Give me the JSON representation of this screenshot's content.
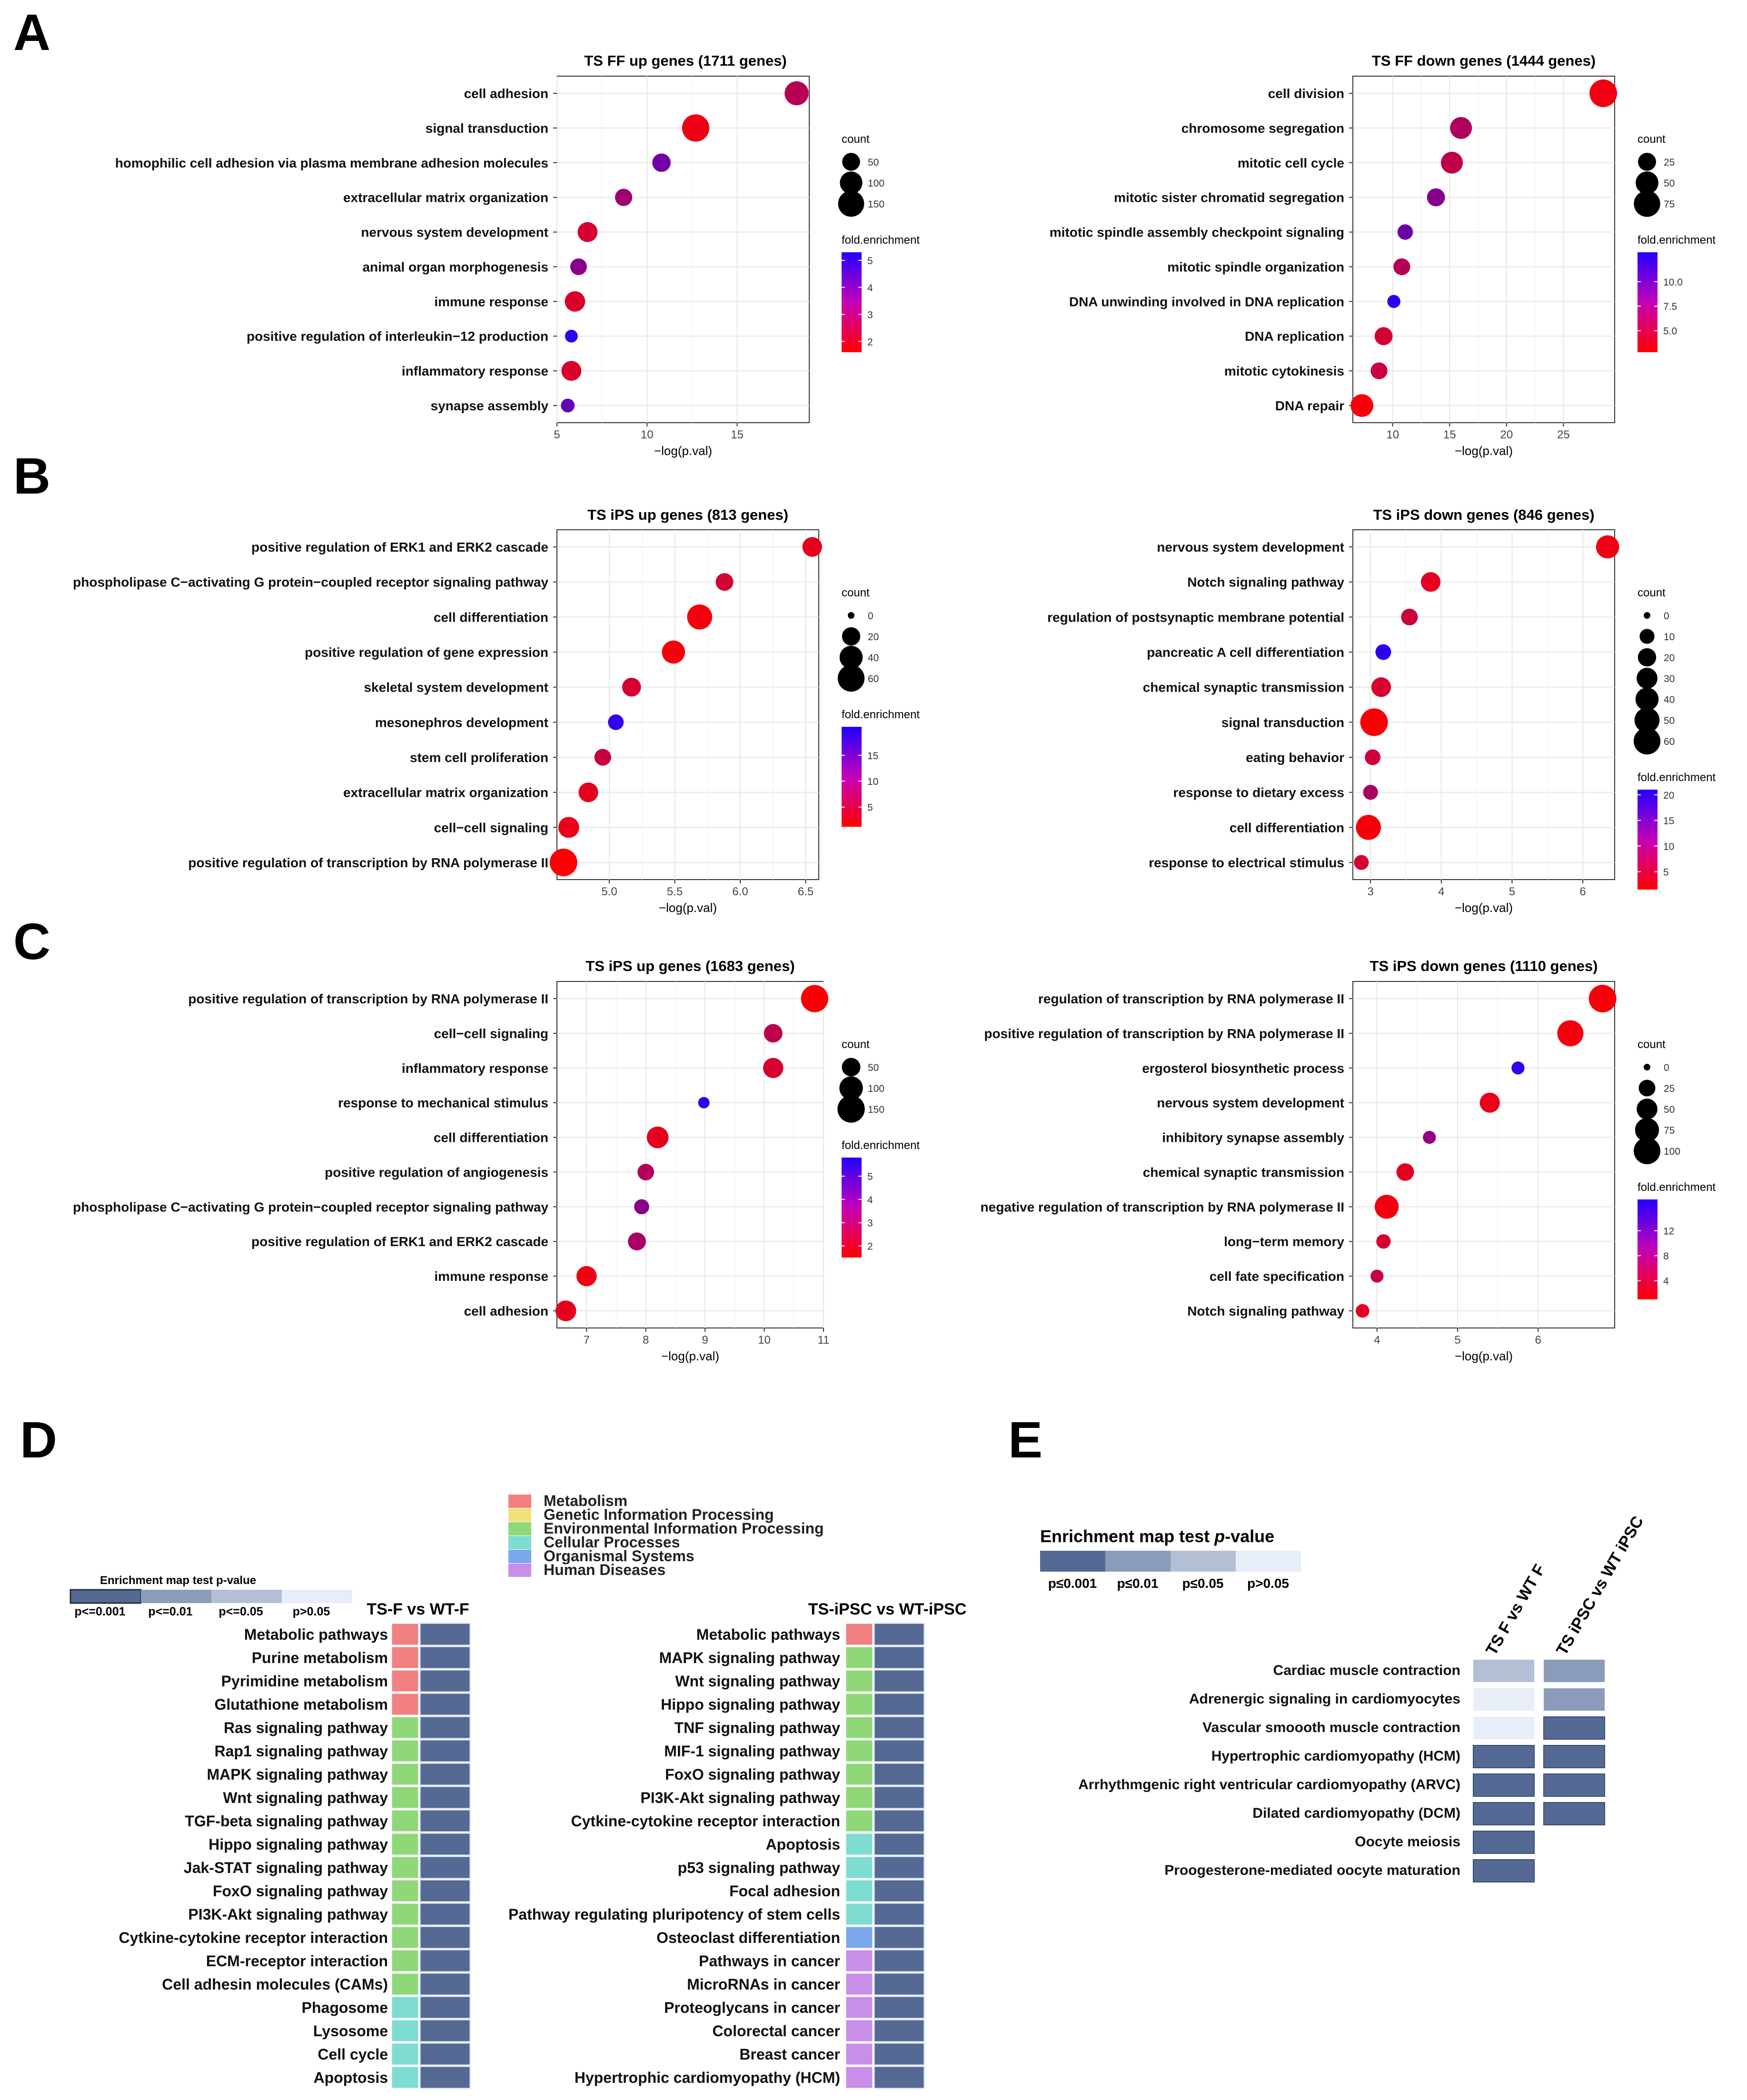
{
  "panels": {
    "A": "A",
    "B": "B",
    "C": "C",
    "D": "D",
    "E": "E"
  },
  "colors": {
    "enrich_high": "#2200ff",
    "enrich_low": "#ff0000",
    "pv001": "#546a94",
    "pv01": "#8a9cb9",
    "pv05": "#b3bfd5",
    "pvns": "#e8eef8"
  },
  "chart_data": [
    {
      "id": "A1",
      "type": "scatter",
      "title": "TS FF up genes (1711 genes)",
      "xlabel": "−log(p.val)",
      "xlim": [
        5,
        19
      ],
      "xticks": [
        5,
        10,
        15
      ],
      "xticklabels": [
        "5",
        "10",
        "15"
      ],
      "grid": true,
      "categories": [
        "cell adhesion",
        "signal transduction",
        "homophilic cell adhesion via plasma membrane adhesion molecules",
        "extracellular matrix organization",
        "nervous system development",
        "animal organ morphogenesis",
        "immune response",
        "positive regulation of interleukin−12 production",
        "inflammatory response",
        "synapse assembly"
      ],
      "x": [
        18.3,
        12.7,
        10.8,
        8.7,
        6.7,
        6.2,
        6.0,
        5.8,
        5.8,
        5.6
      ],
      "count": [
        120,
        170,
        55,
        45,
        70,
        40,
        75,
        15,
        70,
        20
      ],
      "enrichment": [
        2.8,
        1.9,
        4.0,
        3.2,
        2.3,
        3.6,
        2.2,
        5.1,
        2.2,
        4.2
      ],
      "count_legend": {
        "title": "count",
        "breaks": [
          50,
          100,
          150
        ],
        "labels": [
          "50",
          "100",
          "150"
        ],
        "max": 175
      },
      "enrich_legend": {
        "title": "fold.enrichment",
        "range": [
          1.6,
          5.3
        ],
        "ticks": [
          5,
          4,
          3,
          2
        ],
        "labels": [
          "5",
          "4",
          "3",
          "2"
        ]
      }
    },
    {
      "id": "A2",
      "type": "scatter",
      "title": "TS FF down genes (1444 genes)",
      "xlabel": "−log(p.val)",
      "xlim": [
        6.5,
        29.5
      ],
      "xticks": [
        10,
        15,
        20,
        25
      ],
      "xticklabels": [
        "10",
        "15",
        "20",
        "25"
      ],
      "grid": true,
      "categories": [
        "cell division",
        "chromosome segregation",
        "mitotic cell cycle",
        "mitotic sister chromatid segregation",
        "mitotic spindle assembly checkpoint signaling",
        "mitotic spindle organization",
        "DNA unwinding involved in DNA replication",
        "DNA replication",
        "mitotic cytokinesis",
        "DNA repair"
      ],
      "x": [
        28.5,
        16.0,
        15.2,
        13.8,
        11.1,
        10.8,
        10.1,
        9.2,
        8.8,
        7.3
      ],
      "count": [
        85,
        45,
        45,
        25,
        15,
        20,
        8,
        25,
        20,
        50
      ],
      "enrichment": [
        3.5,
        6.5,
        5.8,
        8.5,
        9.5,
        6.2,
        12.5,
        4.8,
        5.2,
        3.2
      ],
      "count_legend": {
        "title": "count",
        "breaks": [
          25,
          50,
          75
        ],
        "labels": [
          "25",
          "50",
          "75"
        ],
        "max": 85
      },
      "enrich_legend": {
        "title": "fold.enrichment",
        "range": [
          2.8,
          13.0
        ],
        "ticks": [
          10,
          7.5,
          5
        ],
        "labels": [
          "10.0",
          "7.5",
          "5.0"
        ]
      }
    },
    {
      "id": "B1",
      "type": "scatter",
      "title": "TS iPS up genes (813 genes)",
      "xlabel": "−log(p.val)",
      "xlim": [
        4.6,
        6.6
      ],
      "xticks": [
        5.0,
        5.5,
        6.0,
        6.5
      ],
      "xticklabels": [
        "5.0",
        "5.5",
        "6.0",
        "6.5"
      ],
      "grid": true,
      "categories": [
        "positive regulation of ERK1 and ERK2 cascade",
        "phospholipase C−activating G protein−coupled receptor signaling pathway",
        "cell differentiation",
        "positive regulation of gene expression",
        "skeletal system development",
        "mesonephros development",
        "stem cell proliferation",
        "extracellular matrix organization",
        "cell−cell signaling",
        "positive regulation of transcription by RNA polymerase II"
      ],
      "x": [
        6.55,
        5.88,
        5.69,
        5.49,
        5.17,
        5.05,
        4.95,
        4.84,
        4.69,
        4.65
      ],
      "count": [
        25,
        18,
        50,
        40,
        22,
        12,
        15,
        25,
        30,
        65
      ],
      "enrichment": [
        3.5,
        5.0,
        2.2,
        2.0,
        4.8,
        19.0,
        6.0,
        3.5,
        3.0,
        1.5
      ],
      "count_legend": {
        "title": "count",
        "breaks": [
          0,
          20,
          40,
          60
        ],
        "labels": [
          "0",
          "20",
          "40",
          "60"
        ],
        "max": 65
      },
      "enrich_legend": {
        "title": "fold.enrichment",
        "range": [
          1.2,
          20.5
        ],
        "ticks": [
          15,
          10,
          5
        ],
        "labels": [
          "15",
          "10",
          "5"
        ]
      }
    },
    {
      "id": "B2",
      "type": "scatter",
      "title": "TS  iPS down genes (846 genes)",
      "xlabel": "−log(p.val)",
      "xlim": [
        2.75,
        6.45
      ],
      "xticks": [
        3,
        4,
        5,
        6
      ],
      "xticklabels": [
        "3",
        "4",
        "5",
        "6"
      ],
      "grid": true,
      "categories": [
        "nervous system development",
        "Notch signaling pathway",
        "regulation of postsynaptic membrane potential",
        "pancreatic A cell differentiation",
        "chemical synaptic transmission",
        "signal transduction",
        "eating behavior",
        "response to dietary excess",
        "cell differentiation",
        "response to electrical stimulus"
      ],
      "x": [
        6.35,
        3.85,
        3.55,
        3.18,
        3.15,
        3.05,
        3.03,
        3.0,
        2.97,
        2.87
      ],
      "count": [
        40,
        25,
        15,
        12,
        25,
        65,
        12,
        10,
        50,
        10
      ],
      "enrichment": [
        3.0,
        4.0,
        6.0,
        20.0,
        5.0,
        2.0,
        6.0,
        9.0,
        2.5,
        5.5
      ],
      "count_legend": {
        "title": "count",
        "breaks": [
          0,
          10,
          20,
          30,
          40,
          50,
          60
        ],
        "labels": [
          "0",
          "10",
          "20",
          "30",
          "40",
          "50",
          "60"
        ],
        "max": 65
      },
      "enrich_legend": {
        "title": "fold.enrichment",
        "range": [
          1.5,
          21.0
        ],
        "ticks": [
          20,
          15,
          10,
          5
        ],
        "labels": [
          "20",
          "15",
          "10",
          "5"
        ]
      }
    },
    {
      "id": "C1",
      "type": "scatter",
      "title": "TS iPS up genes (1683 genes)",
      "xlabel": "−log(p.val)",
      "xlim": [
        6.5,
        11.0
      ],
      "xticks": [
        7,
        8,
        9,
        10,
        11
      ],
      "xticklabels": [
        "7",
        "8",
        "9",
        "10",
        "11"
      ],
      "grid": true,
      "categories": [
        "positive regulation of transcription by RNA polymerase II",
        "cell−cell signaling",
        "inflammatory response",
        "response to mechanical stimulus",
        "cell differentiation",
        "positive regulation of angiogenesis",
        "phospholipase C−activating G protein−coupled receptor signaling pathway",
        "positive regulation of ERK1 and ERK2 cascade",
        "immune response",
        "cell adhesion"
      ],
      "x": [
        10.85,
        10.15,
        10.15,
        8.98,
        8.2,
        8.0,
        7.93,
        7.85,
        7.0,
        6.65
      ],
      "count": [
        150,
        50,
        65,
        8,
        80,
        35,
        25,
        45,
        65,
        70
      ],
      "enrichment": [
        1.6,
        2.8,
        2.3,
        5.6,
        2.0,
        3.0,
        3.8,
        3.2,
        1.8,
        2.0
      ],
      "count_legend": {
        "title": "count",
        "breaks": [
          50,
          100,
          150
        ],
        "labels": [
          "50",
          "100",
          "150"
        ],
        "max": 155
      },
      "enrich_legend": {
        "title": "fold.enrichment",
        "range": [
          1.5,
          5.8
        ],
        "ticks": [
          5,
          4,
          3,
          2
        ],
        "labels": [
          "5",
          "4",
          "3",
          "2"
        ]
      }
    },
    {
      "id": "C2",
      "type": "scatter",
      "title": "TS iPS down genes (1110 genes)",
      "xlabel": "−log(p.val)",
      "xlim": [
        3.7,
        6.95
      ],
      "xticks": [
        4,
        5,
        6
      ],
      "xticklabels": [
        "4",
        "5",
        "6"
      ],
      "grid": true,
      "categories": [
        "regulation of transcription by RNA polymerase II",
        "positive regulation of transcription by RNA polymerase II",
        "ergosterol biosynthetic process",
        "nervous system development",
        "inhibitory synapse assembly",
        "chemical synaptic transmission",
        "negative regulation of transcription by RNA polymerase II",
        "long−term memory",
        "cell fate specification",
        "Notch signaling pathway"
      ],
      "x": [
        6.8,
        6.4,
        5.75,
        5.4,
        4.65,
        4.35,
        4.12,
        4.08,
        4.0,
        3.82
      ],
      "count": [
        110,
        95,
        10,
        45,
        10,
        30,
        75,
        15,
        10,
        12
      ],
      "enrichment": [
        1.5,
        1.8,
        16,
        2.5,
        9,
        3,
        2,
        4,
        5,
        3
      ],
      "count_legend": {
        "title": "count",
        "breaks": [
          0,
          25,
          50,
          75,
          100
        ],
        "labels": [
          "0",
          "25",
          "50",
          "75",
          "100"
        ],
        "max": 110
      },
      "enrich_legend": {
        "title": "fold.enrichment",
        "range": [
          1.0,
          17.0
        ],
        "ticks": [
          12,
          8,
          4
        ],
        "labels": [
          "12",
          "8",
          "4"
        ]
      }
    },
    {
      "id": "D",
      "type": "heatmap",
      "legend_title": "Enrichment map test p-value",
      "pvalue_labels": [
        "p<=0.001",
        "p<=0.01",
        "p<=0.05",
        "p>0.05"
      ],
      "categories_legend": [
        {
          "name": "Metabolism",
          "color": "#f28080"
        },
        {
          "name": "Genetic Information Processing",
          "color": "#f4e07a"
        },
        {
          "name": "Environmental Information Processing",
          "color": "#8ed87a"
        },
        {
          "name": "Cellular Processes",
          "color": "#7fdcd0"
        },
        {
          "name": "Organismal Systems",
          "color": "#7aa7ee"
        },
        {
          "name": "Human Diseases",
          "color": "#c98ee8"
        }
      ],
      "left": {
        "header": "TS-F vs WT-F",
        "rows": [
          {
            "label": "Metabolic pathways",
            "cat": "Metabolism",
            "p": "p<=0.001"
          },
          {
            "label": "Purine metabolism",
            "cat": "Metabolism",
            "p": "p<=0.001"
          },
          {
            "label": "Pyrimidine metabolism",
            "cat": "Metabolism",
            "p": "p<=0.001"
          },
          {
            "label": "Glutathione metabolism",
            "cat": "Metabolism",
            "p": "p<=0.001"
          },
          {
            "label": "Ras signaling pathway",
            "cat": "Environmental Information Processing",
            "p": "p<=0.001"
          },
          {
            "label": "Rap1 signaling pathway",
            "cat": "Environmental Information Processing",
            "p": "p<=0.001"
          },
          {
            "label": "MAPK signaling pathway",
            "cat": "Environmental Information Processing",
            "p": "p<=0.001"
          },
          {
            "label": "Wnt signaling pathway",
            "cat": "Environmental Information Processing",
            "p": "p<=0.001"
          },
          {
            "label": "TGF-beta signaling pathway",
            "cat": "Environmental Information Processing",
            "p": "p<=0.001"
          },
          {
            "label": "Hippo signaling pathway",
            "cat": "Environmental Information Processing",
            "p": "p<=0.001"
          },
          {
            "label": "Jak-STAT signaling pathway",
            "cat": "Environmental Information Processing",
            "p": "p<=0.001"
          },
          {
            "label": "FoxO signaling pathway",
            "cat": "Environmental Information Processing",
            "p": "p<=0.001"
          },
          {
            "label": "PI3K-Akt signaling pathway",
            "cat": "Environmental Information Processing",
            "p": "p<=0.001"
          },
          {
            "label": "Cytkine-cytokine receptor interaction",
            "cat": "Environmental Information Processing",
            "p": "p<=0.001"
          },
          {
            "label": "ECM-receptor interaction",
            "cat": "Environmental Information Processing",
            "p": "p<=0.001"
          },
          {
            "label": "Cell adhesin molecules (CAMs)",
            "cat": "Environmental Information Processing",
            "p": "p<=0.001"
          },
          {
            "label": "Phagosome",
            "cat": "Cellular Processes",
            "p": "p<=0.001"
          },
          {
            "label": "Lysosome",
            "cat": "Cellular Processes",
            "p": "p<=0.001"
          },
          {
            "label": "Cell cycle",
            "cat": "Cellular Processes",
            "p": "p<=0.001"
          },
          {
            "label": "Apoptosis",
            "cat": "Cellular Processes",
            "p": "p<=0.001"
          }
        ]
      },
      "right": {
        "header": "TS-iPSC vs WT-iPSC",
        "rows": [
          {
            "label": "Metabolic pathways",
            "cat": "Metabolism",
            "p": "p<=0.001"
          },
          {
            "label": "MAPK signaling pathway",
            "cat": "Environmental Information Processing",
            "p": "p<=0.001"
          },
          {
            "label": "Wnt signaling pathway",
            "cat": "Environmental Information Processing",
            "p": "p<=0.001"
          },
          {
            "label": "Hippo signaling pathway",
            "cat": "Environmental Information Processing",
            "p": "p<=0.001"
          },
          {
            "label": "TNF signaling pathway",
            "cat": "Environmental Information Processing",
            "p": "p<=0.001"
          },
          {
            "label": "MIF-1 signaling pathway",
            "cat": "Environmental Information Processing",
            "p": "p<=0.001"
          },
          {
            "label": "FoxO signaling pathway",
            "cat": "Environmental Information Processing",
            "p": "p<=0.001"
          },
          {
            "label": "PI3K-Akt signaling pathway",
            "cat": "Environmental Information Processing",
            "p": "p<=0.001"
          },
          {
            "label": "Cytkine-cytokine receptor interaction",
            "cat": "Environmental Information Processing",
            "p": "p<=0.001"
          },
          {
            "label": "Apoptosis",
            "cat": "Cellular Processes",
            "p": "p<=0.001"
          },
          {
            "label": "p53 signaling pathway",
            "cat": "Cellular Processes",
            "p": "p<=0.001"
          },
          {
            "label": "Focal adhesion",
            "cat": "Cellular Processes",
            "p": "p<=0.001"
          },
          {
            "label": "Pathway regulating pluripotency of stem cells",
            "cat": "Cellular Processes",
            "p": "p<=0.001"
          },
          {
            "label": "Osteoclast differentiation",
            "cat": "Organismal Systems",
            "p": "p<=0.001"
          },
          {
            "label": "Pathways in cancer",
            "cat": "Human Diseases",
            "p": "p<=0.001"
          },
          {
            "label": "MicroRNAs in cancer",
            "cat": "Human Diseases",
            "p": "p<=0.001"
          },
          {
            "label": "Proteoglycans in cancer",
            "cat": "Human Diseases",
            "p": "p<=0.001"
          },
          {
            "label": "Colorectal cancer",
            "cat": "Human Diseases",
            "p": "p<=0.001"
          },
          {
            "label": "Breast cancer",
            "cat": "Human Diseases",
            "p": "p<=0.001"
          },
          {
            "label": "Hypertrophic cardiomyopathy (HCM)",
            "cat": "Human Diseases",
            "p": "p<=0.001"
          }
        ]
      }
    },
    {
      "id": "E",
      "type": "heatmap",
      "legend_title_main": "Enrichment map test ",
      "legend_title_italic": "p",
      "legend_title_end": "-value",
      "pvalue_labels": [
        "p≤0.001",
        "p≤0.01",
        "p≤0.05",
        "p>0.05"
      ],
      "columns": [
        "TS F vs WT F",
        "TS iPSC vs WT iPSC"
      ],
      "rows": [
        {
          "label": "Cardiac muscle contraction",
          "values": [
            "p≤0.05",
            "p≤0.01"
          ]
        },
        {
          "label": "Adrenergic signaling in cardiomyocytes",
          "values": [
            "p>0.05",
            "p≤0.01"
          ]
        },
        {
          "label": "Vascular smoooth muscle contraction",
          "values": [
            "p>0.05",
            "p≤0.001"
          ]
        },
        {
          "label": "Hypertrophic cardiomyopathy (HCM)",
          "values": [
            "p≤0.001",
            "p≤0.001"
          ]
        },
        {
          "label": "Arrhythmgenic right ventricular cardiomyopathy (ARVC)",
          "values": [
            "p≤0.001",
            "p≤0.001"
          ]
        },
        {
          "label": "Dilated cardiomyopathy (DCM)",
          "values": [
            "p≤0.001",
            "p≤0.001"
          ]
        },
        {
          "label": "Oocyte meiosis",
          "values": [
            "p≤0.001",
            ""
          ]
        },
        {
          "label": "Proogesterone-mediated oocyte maturation",
          "values": [
            "p≤0.001",
            ""
          ]
        }
      ]
    }
  ]
}
